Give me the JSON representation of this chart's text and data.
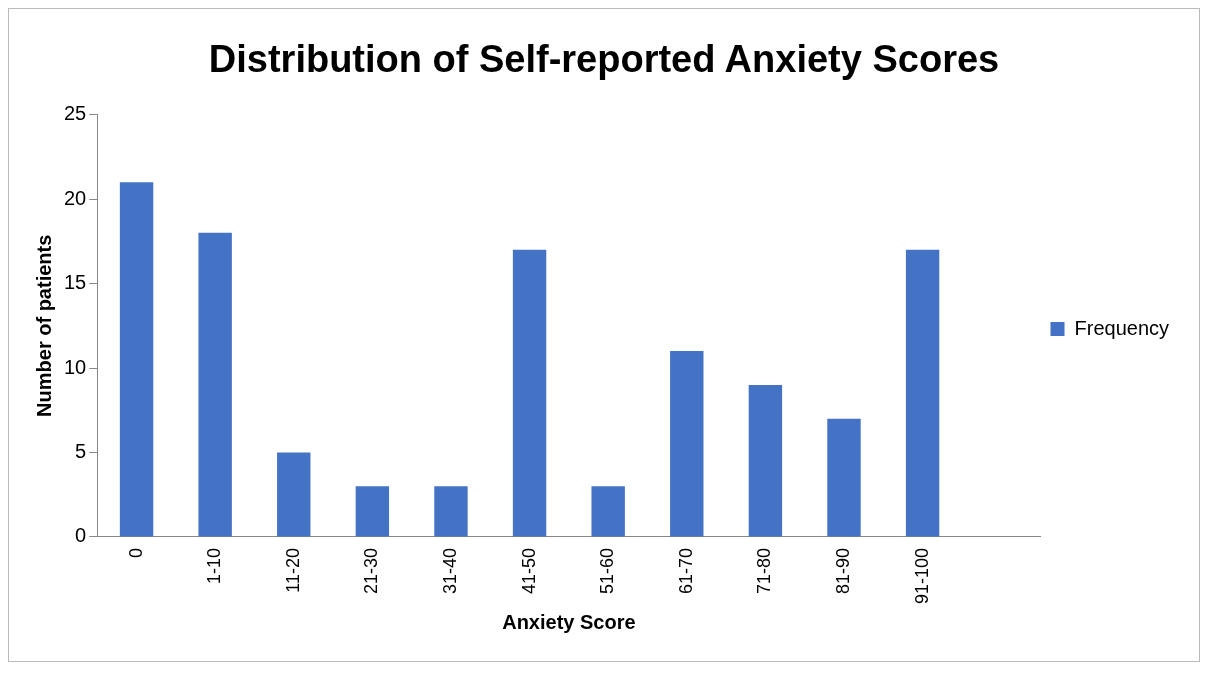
{
  "chart_data": {
    "type": "bar",
    "title": "Distribution of Self-reported Anxiety Scores",
    "xlabel": "Anxiety Score",
    "ylabel": "Number of patients",
    "categories": [
      "0",
      "1-10",
      "11-20",
      "21-30",
      "31-40",
      "41-50",
      "51-60",
      "61-70",
      "71-80",
      "81-90",
      "91-100",
      null
    ],
    "series": [
      {
        "name": "Frequency",
        "color": "#4472c4",
        "values": [
          21,
          18,
          5,
          3,
          3,
          17,
          3,
          11,
          9,
          7,
          17,
          null
        ]
      }
    ],
    "ylim": [
      0,
      25
    ],
    "yticks": [
      0,
      5,
      10,
      15,
      20,
      25
    ],
    "grid": false,
    "legend": "right"
  }
}
